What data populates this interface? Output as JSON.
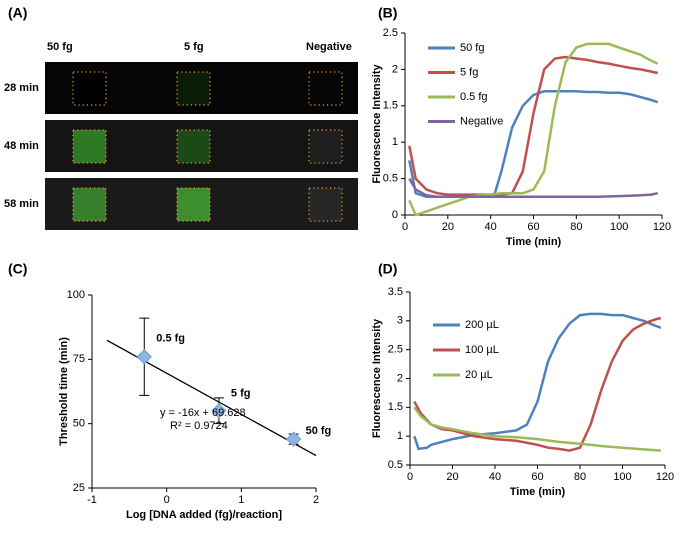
{
  "image_grid": {
    "label": "(A)",
    "columns": [
      "50 fg",
      "5 fg",
      "Negative"
    ],
    "rows": [
      "28 min",
      "48 min",
      "58 min"
    ]
  },
  "chart_data": [
    {
      "type": "line",
      "label": "(B)",
      "y_label": "Fluorescence Intensity",
      "x_label": "Time (min)",
      "xlim": [
        0,
        120
      ],
      "xticks": [
        0,
        20,
        40,
        60,
        80,
        100,
        120
      ],
      "ylim": [
        0,
        2.5
      ],
      "yticks": [
        0,
        0.5,
        1,
        1.5,
        2,
        2.5
      ],
      "grid": false,
      "legend": "upper-left",
      "series": [
        {
          "name": "50 fg",
          "color": "#4f81bd",
          "x": [
            2,
            5,
            10,
            15,
            20,
            25,
            30,
            35,
            40,
            42,
            45,
            50,
            55,
            60,
            65,
            70,
            75,
            80,
            85,
            90,
            95,
            100,
            105,
            110,
            115,
            118
          ],
          "values": [
            0.75,
            0.3,
            0.25,
            0.25,
            0.25,
            0.25,
            0.25,
            0.25,
            0.26,
            0.3,
            0.6,
            1.2,
            1.5,
            1.65,
            1.7,
            1.7,
            1.7,
            1.7,
            1.69,
            1.69,
            1.68,
            1.68,
            1.66,
            1.62,
            1.58,
            1.55
          ]
        },
        {
          "name": "5 fg",
          "color": "#c0504d",
          "x": [
            2,
            5,
            10,
            15,
            20,
            25,
            30,
            35,
            40,
            45,
            50,
            55,
            60,
            65,
            70,
            75,
            80,
            85,
            90,
            95,
            100,
            105,
            110,
            115,
            118
          ],
          "values": [
            0.95,
            0.5,
            0.35,
            0.3,
            0.28,
            0.28,
            0.28,
            0.28,
            0.28,
            0.28,
            0.3,
            0.6,
            1.4,
            2.0,
            2.15,
            2.17,
            2.15,
            2.13,
            2.1,
            2.08,
            2.05,
            2.02,
            2.0,
            1.97,
            1.95
          ]
        },
        {
          "name": "0.5 fg",
          "color": "#9bbb59",
          "x": [
            2,
            5,
            10,
            15,
            20,
            25,
            30,
            35,
            40,
            45,
            50,
            55,
            60,
            65,
            70,
            75,
            80,
            85,
            90,
            95,
            100,
            105,
            110,
            115,
            118
          ],
          "values": [
            0.2,
            0,
            0.05,
            0.1,
            0.15,
            0.2,
            0.25,
            0.27,
            0.28,
            0.3,
            0.3,
            0.3,
            0.35,
            0.6,
            1.5,
            2.1,
            2.3,
            2.35,
            2.35,
            2.35,
            2.3,
            2.25,
            2.2,
            2.12,
            2.08
          ]
        },
        {
          "name": "Negative",
          "color": "#8064a2",
          "x": [
            2,
            5,
            10,
            15,
            20,
            30,
            40,
            50,
            60,
            70,
            80,
            90,
            100,
            110,
            115,
            118
          ],
          "values": [
            0.5,
            0.35,
            0.27,
            0.25,
            0.25,
            0.25,
            0.25,
            0.25,
            0.25,
            0.25,
            0.25,
            0.25,
            0.26,
            0.27,
            0.28,
            0.3
          ]
        }
      ]
    },
    {
      "type": "scatter",
      "label": "(C)",
      "y_label": "Threshold time (min)",
      "x_label": "Log [DNA added (fg)/reaction]",
      "xlim": [
        -1,
        2
      ],
      "xticks": [
        -1,
        0,
        1,
        2
      ],
      "ylim": [
        25,
        100
      ],
      "yticks": [
        25,
        50,
        75,
        100
      ],
      "x": [
        -0.3,
        0.7,
        1.7
      ],
      "values": [
        76,
        55,
        44
      ],
      "errors": [
        15,
        5,
        2
      ],
      "point_labels": [
        "0.5 fg",
        "5 fg",
        "50 fg"
      ],
      "color": "#8db4e2",
      "trendline": {
        "x": [
          -0.8,
          2
        ],
        "y": [
          82.4,
          37.6
        ]
      },
      "annotations": [
        "y = -16x + 69.628",
        "R² = 0.9724"
      ]
    },
    {
      "type": "line",
      "label": "(D)",
      "y_label": "Fluorescence Intensity",
      "x_label": "Time (min)",
      "xlim": [
        0,
        120
      ],
      "xticks": [
        0,
        20,
        40,
        60,
        80,
        100,
        120
      ],
      "ylim": [
        0.5,
        3.5
      ],
      "yticks": [
        0.5,
        1,
        1.5,
        2,
        2.5,
        3,
        3.5
      ],
      "grid": false,
      "legend": "upper-left",
      "series": [
        {
          "name": "200 µL",
          "color": "#4f81bd",
          "x": [
            2,
            4,
            8,
            10,
            20,
            30,
            40,
            50,
            55,
            60,
            65,
            70,
            75,
            80,
            85,
            90,
            95,
            100,
            105,
            110,
            115,
            118
          ],
          "values": [
            1.0,
            0.78,
            0.8,
            0.85,
            0.95,
            1.02,
            1.05,
            1.1,
            1.2,
            1.6,
            2.3,
            2.7,
            2.95,
            3.1,
            3.12,
            3.12,
            3.1,
            3.1,
            3.05,
            3.0,
            2.92,
            2.88
          ]
        },
        {
          "name": "100 µL",
          "color": "#c0504d",
          "x": [
            2,
            5,
            10,
            15,
            20,
            30,
            40,
            50,
            60,
            65,
            70,
            75,
            80,
            85,
            90,
            95,
            100,
            105,
            110,
            115,
            118
          ],
          "values": [
            1.6,
            1.4,
            1.2,
            1.12,
            1.1,
            1.0,
            0.95,
            0.92,
            0.85,
            0.8,
            0.78,
            0.75,
            0.8,
            1.2,
            1.8,
            2.3,
            2.65,
            2.85,
            2.95,
            3.02,
            3.05
          ]
        },
        {
          "name": "20 µL",
          "color": "#9bbb59",
          "x": [
            2,
            5,
            10,
            15,
            20,
            30,
            40,
            50,
            60,
            70,
            80,
            90,
            100,
            110,
            118
          ],
          "values": [
            1.5,
            1.35,
            1.2,
            1.15,
            1.12,
            1.05,
            1.0,
            0.98,
            0.95,
            0.9,
            0.87,
            0.83,
            0.8,
            0.77,
            0.75
          ]
        }
      ]
    }
  ]
}
